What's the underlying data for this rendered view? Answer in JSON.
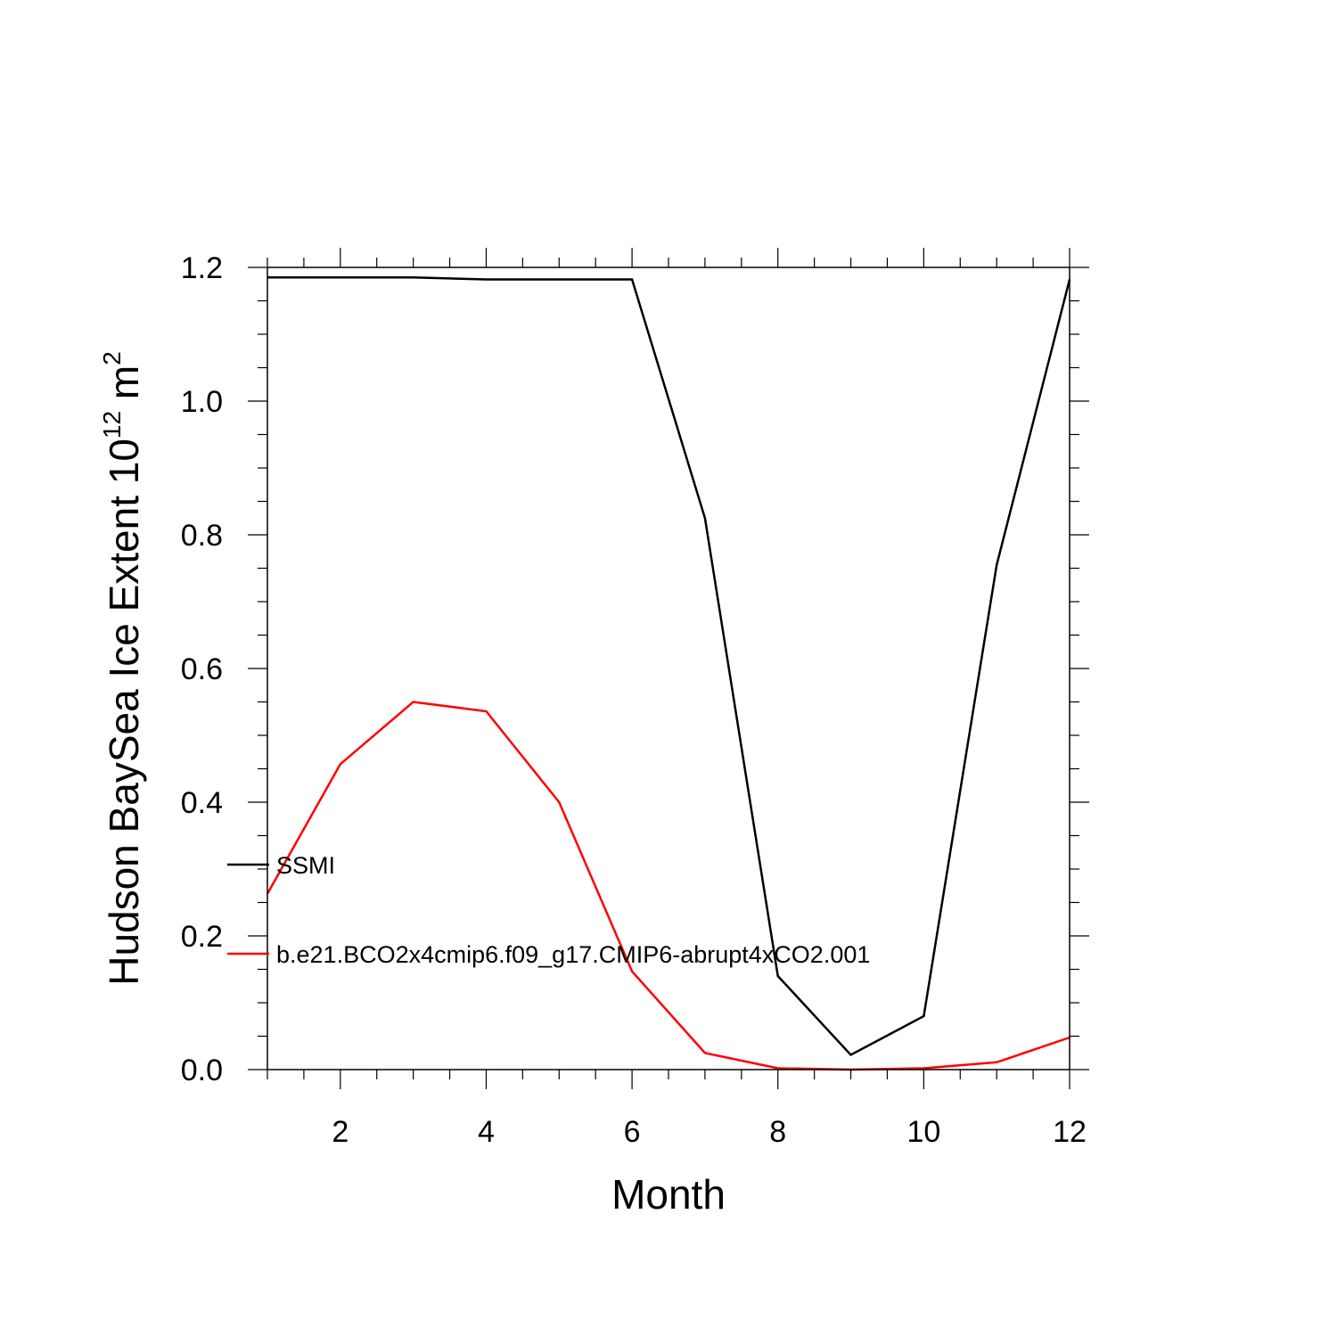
{
  "chart_data": {
    "type": "line",
    "title": "",
    "xlabel": "Month",
    "ylabel": "Hudson BaySea Ice Extent 10",
    "ylabel_sup": "12",
    "ylabel_unit": " m",
    "ylabel_unit_sup": "2",
    "xlim": [
      1,
      12
    ],
    "ylim": [
      0,
      1.2
    ],
    "x_ticks": [
      2,
      4,
      6,
      8,
      10,
      12
    ],
    "x_tick_labels": [
      "2",
      "4",
      "6",
      "8",
      "10",
      "12"
    ],
    "y_ticks": [
      0,
      0.2,
      0.4,
      0.6,
      0.8,
      1.0,
      1.2
    ],
    "y_tick_labels": [
      "0.0",
      "0.2",
      "0.4",
      "0.6",
      "0.8",
      "1.0",
      "1.2"
    ],
    "grid": false,
    "legend_position": "left-inside",
    "x": [
      1,
      2,
      3,
      4,
      5,
      6,
      7,
      8,
      9,
      10,
      11,
      12
    ],
    "series": [
      {
        "name": "SSMI",
        "color": "#000000",
        "values": [
          1.185,
          1.185,
          1.185,
          1.182,
          1.182,
          1.182,
          0.825,
          0.14,
          0.022,
          0.08,
          0.755,
          1.182
        ]
      },
      {
        "name": "b.e21.BCO2x4cmip6.f09_g17.CMIP6-abrupt4xCO2.001",
        "color": "#ff0000",
        "values": [
          0.263,
          0.457,
          0.55,
          0.536,
          0.4,
          0.147,
          0.025,
          0.002,
          0.0,
          0.002,
          0.011,
          0.048
        ]
      }
    ]
  }
}
